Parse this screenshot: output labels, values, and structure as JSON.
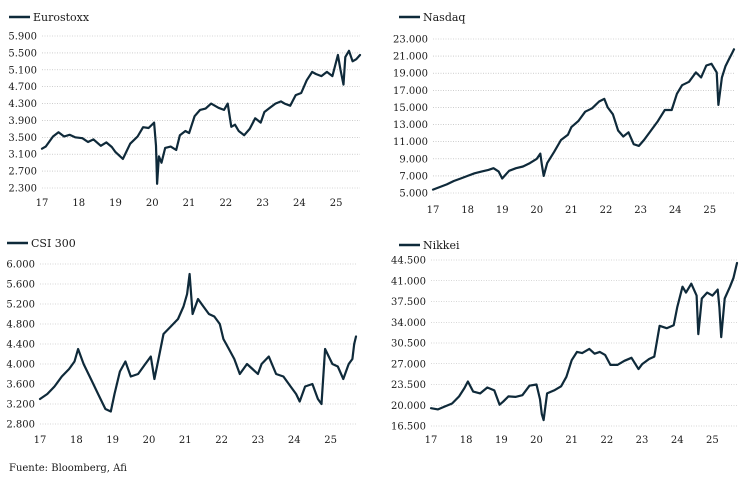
{
  "source": "Fuente: Bloomberg, Afi",
  "line_color": "#0f2a3a",
  "grid_color": "#b0b0b0",
  "chart_data": [
    {
      "type": "line",
      "title": "",
      "series_name": "Eurostoxx",
      "x_ticks": [
        "17",
        "18",
        "19",
        "20",
        "21",
        "22",
        "23",
        "24",
        "25"
      ],
      "x_range": [
        17,
        25.65
      ],
      "y_ticks": [
        "5.900",
        "5.500",
        "5.100",
        "4.700",
        "4.300",
        "3.900",
        "3.500",
        "3.100",
        "2.700",
        "2.300"
      ],
      "ylim": [
        2300,
        5900
      ],
      "y_gridlines": true,
      "x": [
        17.0,
        17.1,
        17.3,
        17.45,
        17.6,
        17.75,
        17.9,
        18.1,
        18.25,
        18.4,
        18.6,
        18.75,
        18.9,
        19.0,
        19.2,
        19.4,
        19.6,
        19.75,
        19.9,
        20.05,
        20.1,
        20.13,
        20.18,
        20.25,
        20.35,
        20.5,
        20.65,
        20.75,
        20.9,
        21.0,
        21.15,
        21.3,
        21.45,
        21.6,
        21.8,
        21.95,
        22.05,
        22.15,
        22.25,
        22.35,
        22.5,
        22.65,
        22.8,
        22.95,
        23.05,
        23.2,
        23.35,
        23.5,
        23.6,
        23.75,
        23.9,
        24.05,
        24.2,
        24.35,
        24.45,
        24.6,
        24.75,
        24.9,
        25.05,
        25.12,
        25.2,
        25.25,
        25.35,
        25.45,
        25.55,
        25.65
      ],
      "y": [
        3230,
        3280,
        3520,
        3620,
        3520,
        3560,
        3500,
        3480,
        3390,
        3450,
        3300,
        3380,
        3270,
        3150,
        2990,
        3350,
        3520,
        3740,
        3720,
        3850,
        3300,
        2400,
        3050,
        2900,
        3250,
        3280,
        3200,
        3550,
        3650,
        3600,
        4000,
        4150,
        4180,
        4300,
        4200,
        4150,
        4300,
        3750,
        3800,
        3650,
        3550,
        3700,
        3950,
        3850,
        4100,
        4200,
        4300,
        4350,
        4300,
        4250,
        4500,
        4550,
        4850,
        5050,
        5000,
        4950,
        5050,
        4950,
        5450,
        5100,
        4750,
        5400,
        5550,
        5300,
        5350,
        5450
      ]
    },
    {
      "type": "line",
      "title": "",
      "series_name": "Nasdaq",
      "x_ticks": [
        "17",
        "18",
        "19",
        "20",
        "21",
        "22",
        "23",
        "24",
        "25"
      ],
      "x_range": [
        17,
        25.7
      ],
      "y_ticks": [
        "23.000",
        "21.000",
        "19.000",
        "17.000",
        "15.000",
        "13.000",
        "11.000",
        "9.000",
        "7.000",
        "5.000"
      ],
      "ylim": [
        5000,
        23000
      ],
      "y_gridlines": true,
      "x": [
        17.0,
        17.2,
        17.4,
        17.6,
        17.8,
        18.0,
        18.2,
        18.4,
        18.6,
        18.75,
        18.9,
        19.0,
        19.2,
        19.4,
        19.6,
        19.8,
        20.0,
        20.1,
        20.15,
        20.2,
        20.3,
        20.5,
        20.7,
        20.9,
        21.0,
        21.2,
        21.4,
        21.6,
        21.8,
        21.95,
        22.05,
        22.2,
        22.35,
        22.5,
        22.65,
        22.8,
        22.95,
        23.1,
        23.3,
        23.5,
        23.7,
        23.9,
        24.05,
        24.2,
        24.4,
        24.6,
        24.75,
        24.9,
        25.05,
        25.2,
        25.25,
        25.35,
        25.45,
        25.55,
        25.65,
        25.7
      ],
      "y": [
        5400,
        5700,
        6000,
        6400,
        6700,
        7000,
        7300,
        7500,
        7700,
        7900,
        7500,
        6700,
        7600,
        7900,
        8100,
        8500,
        9000,
        9600,
        8200,
        7000,
        8500,
        9800,
        11200,
        11800,
        12700,
        13400,
        14500,
        14900,
        15700,
        16000,
        15000,
        14200,
        12300,
        11600,
        12100,
        10700,
        10500,
        11200,
        12300,
        13400,
        14700,
        14700,
        16600,
        17600,
        18000,
        19100,
        18500,
        19900,
        20100,
        19100,
        15300,
        18500,
        19800,
        20600,
        21400,
        21800
      ]
    },
    {
      "type": "line",
      "title": "",
      "series_name": "CSI 300",
      "x_ticks": [
        "17",
        "18",
        "19",
        "20",
        "21",
        "22",
        "23",
        "24",
        "25"
      ],
      "x_range": [
        17,
        25.7
      ],
      "y_ticks": [
        "6.000",
        "5.600",
        "5.200",
        "4.800",
        "4.400",
        "4.000",
        "3.600",
        "3.200",
        "2.800"
      ],
      "ylim": [
        2800,
        6000
      ],
      "y_gridlines": true,
      "x": [
        17.0,
        17.2,
        17.4,
        17.6,
        17.8,
        17.95,
        18.05,
        18.2,
        18.4,
        18.6,
        18.8,
        18.95,
        19.05,
        19.2,
        19.35,
        19.5,
        19.7,
        19.9,
        20.05,
        20.15,
        20.25,
        20.4,
        20.6,
        20.8,
        20.95,
        21.05,
        21.12,
        21.2,
        21.35,
        21.5,
        21.65,
        21.8,
        21.95,
        22.05,
        22.2,
        22.35,
        22.5,
        22.7,
        22.85,
        23.0,
        23.1,
        23.3,
        23.5,
        23.7,
        23.9,
        24.05,
        24.15,
        24.3,
        24.5,
        24.65,
        24.75,
        24.85,
        25.05,
        25.2,
        25.35,
        25.5,
        25.6,
        25.65,
        25.7
      ],
      "y": [
        3300,
        3400,
        3550,
        3750,
        3900,
        4050,
        4300,
        4000,
        3700,
        3400,
        3100,
        3050,
        3400,
        3850,
        4050,
        3750,
        3800,
        4000,
        4150,
        3700,
        4050,
        4600,
        4750,
        4900,
        5150,
        5400,
        5800,
        5000,
        5300,
        5150,
        5000,
        4950,
        4800,
        4500,
        4300,
        4100,
        3800,
        4000,
        3900,
        3800,
        4000,
        4150,
        3800,
        3750,
        3550,
        3400,
        3250,
        3550,
        3600,
        3300,
        3200,
        4300,
        4000,
        3950,
        3700,
        4000,
        4100,
        4400,
        4550
      ]
    },
    {
      "type": "line",
      "title": "",
      "series_name": "Nikkei",
      "x_ticks": [
        "17",
        "18",
        "19",
        "20",
        "21",
        "22",
        "23",
        "24",
        "25"
      ],
      "x_range": [
        17,
        25.7
      ],
      "y_ticks": [
        "44.500",
        "41.000",
        "37.500",
        "34.000",
        "30.500",
        "27.000",
        "23.500",
        "20.000",
        "16.500"
      ],
      "ylim": [
        16500,
        44500
      ],
      "y_gridlines": true,
      "x": [
        17.0,
        17.2,
        17.4,
        17.6,
        17.8,
        17.95,
        18.05,
        18.2,
        18.4,
        18.6,
        18.8,
        18.95,
        19.05,
        19.2,
        19.4,
        19.6,
        19.8,
        20.0,
        20.1,
        20.15,
        20.2,
        20.3,
        20.5,
        20.7,
        20.85,
        21.0,
        21.15,
        21.3,
        21.5,
        21.65,
        21.8,
        21.95,
        22.1,
        22.3,
        22.5,
        22.7,
        22.9,
        23.0,
        23.2,
        23.35,
        23.5,
        23.7,
        23.9,
        24.0,
        24.15,
        24.25,
        24.4,
        24.55,
        24.6,
        24.7,
        24.85,
        25.0,
        25.15,
        25.2,
        25.25,
        25.35,
        25.5,
        25.6,
        25.7
      ],
      "y": [
        19500,
        19300,
        19800,
        20300,
        21500,
        22900,
        24000,
        22300,
        22000,
        23000,
        22500,
        20100,
        20600,
        21500,
        21400,
        21700,
        23300,
        23500,
        21000,
        18500,
        17500,
        22000,
        22500,
        23200,
        24800,
        27600,
        29000,
        28800,
        29500,
        28700,
        29000,
        28500,
        26800,
        26800,
        27500,
        28000,
        26100,
        26900,
        27800,
        28200,
        33400,
        33000,
        33500,
        36500,
        40000,
        39000,
        40500,
        38500,
        32000,
        38000,
        39000,
        38500,
        39500,
        36500,
        31500,
        38000,
        40000,
        41500,
        44000
      ]
    }
  ]
}
